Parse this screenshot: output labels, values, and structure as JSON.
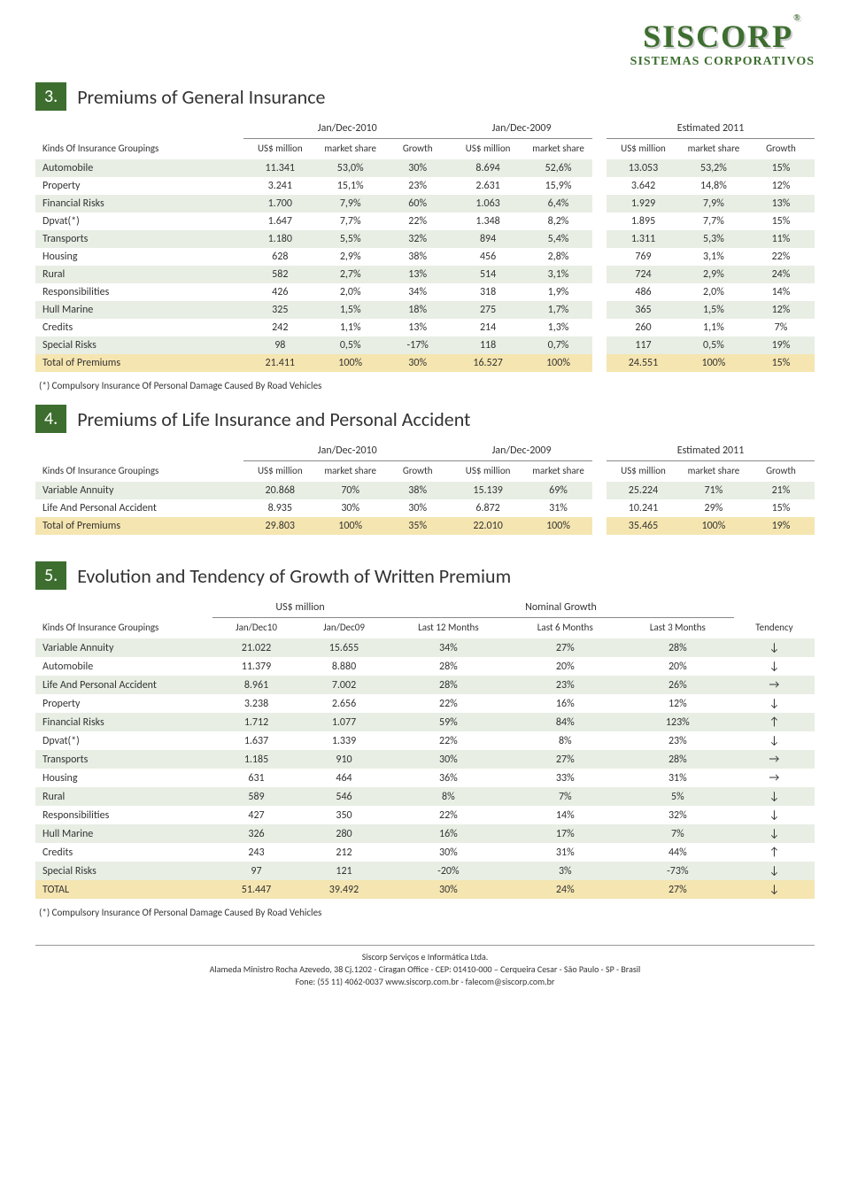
{
  "logo": {
    "main": "SISCORP",
    "reg": "®",
    "sub": "SISTEMAS CORPORATIVOS"
  },
  "colors": {
    "accent": "#3d6e2f",
    "altRow": "#e8eee4",
    "totalRow": "#f5e5b0"
  },
  "section3": {
    "num": "3.",
    "title": "Premiums of General Insurance",
    "periods": {
      "p1": "Jan/Dec-2010",
      "p2": "Jan/Dec-2009",
      "est": "Estimated 2011"
    },
    "colhead": {
      "kinds": "Kinds Of Insurance Groupings",
      "usd": "US$ million",
      "share": "market share",
      "growth": "Growth"
    },
    "rows": [
      {
        "label": "Automobile",
        "a": "11.341",
        "b": "53,0%",
        "c": "30%",
        "d": "8.694",
        "e": "52,6%",
        "f": "13.053",
        "g": "53,2%",
        "h": "15%"
      },
      {
        "label": "Property",
        "a": "3.241",
        "b": "15,1%",
        "c": "23%",
        "d": "2.631",
        "e": "15,9%",
        "f": "3.642",
        "g": "14,8%",
        "h": "12%"
      },
      {
        "label": "Financial Risks",
        "a": "1.700",
        "b": "7,9%",
        "c": "60%",
        "d": "1.063",
        "e": "6,4%",
        "f": "1.929",
        "g": "7,9%",
        "h": "13%"
      },
      {
        "label": "Dpvat(*)",
        "a": "1.647",
        "b": "7,7%",
        "c": "22%",
        "d": "1.348",
        "e": "8,2%",
        "f": "1.895",
        "g": "7,7%",
        "h": "15%"
      },
      {
        "label": "Transports",
        "a": "1.180",
        "b": "5,5%",
        "c": "32%",
        "d": "894",
        "e": "5,4%",
        "f": "1.311",
        "g": "5,3%",
        "h": "11%"
      },
      {
        "label": "Housing",
        "a": "628",
        "b": "2,9%",
        "c": "38%",
        "d": "456",
        "e": "2,8%",
        "f": "769",
        "g": "3,1%",
        "h": "22%"
      },
      {
        "label": "Rural",
        "a": "582",
        "b": "2,7%",
        "c": "13%",
        "d": "514",
        "e": "3,1%",
        "f": "724",
        "g": "2,9%",
        "h": "24%"
      },
      {
        "label": "Responsibilities",
        "a": "426",
        "b": "2,0%",
        "c": "34%",
        "d": "318",
        "e": "1,9%",
        "f": "486",
        "g": "2,0%",
        "h": "14%"
      },
      {
        "label": "Hull Marine",
        "a": "325",
        "b": "1,5%",
        "c": "18%",
        "d": "275",
        "e": "1,7%",
        "f": "365",
        "g": "1,5%",
        "h": "12%"
      },
      {
        "label": "Credits",
        "a": "242",
        "b": "1,1%",
        "c": "13%",
        "d": "214",
        "e": "1,3%",
        "f": "260",
        "g": "1,1%",
        "h": "7%"
      },
      {
        "label": "Special Risks",
        "a": "98",
        "b": "0,5%",
        "c": "-17%",
        "d": "118",
        "e": "0,7%",
        "f": "117",
        "g": "0,5%",
        "h": "19%"
      }
    ],
    "total": {
      "label": "Total of Premiums",
      "a": "21.411",
      "b": "100%",
      "c": "30%",
      "d": "16.527",
      "e": "100%",
      "f": "24.551",
      "g": "100%",
      "h": "15%"
    },
    "footnote": "(*) Compulsory Insurance Of Personal Damage Caused By Road Vehicles"
  },
  "section4": {
    "num": "4.",
    "title": "Premiums of Life Insurance and Personal Accident",
    "periods": {
      "p1": "Jan/Dec-2010",
      "p2": "Jan/Dec-2009",
      "est": "Estimated 2011"
    },
    "colhead": {
      "kinds": "Kinds Of Insurance Groupings",
      "usd": "US$ million",
      "share": "market share",
      "growth": "Growth"
    },
    "rows": [
      {
        "label": "Variable Annuity",
        "a": "20.868",
        "b": "70%",
        "c": "38%",
        "d": "15.139",
        "e": "69%",
        "f": "25.224",
        "g": "71%",
        "h": "21%"
      },
      {
        "label": "Life And Personal Accident",
        "a": "8.935",
        "b": "30%",
        "c": "30%",
        "d": "6.872",
        "e": "31%",
        "f": "10.241",
        "g": "29%",
        "h": "15%"
      }
    ],
    "total": {
      "label": "Total of Premiums",
      "a": "29.803",
      "b": "100%",
      "c": "35%",
      "d": "22.010",
      "e": "100%",
      "f": "35.465",
      "g": "100%",
      "h": "19%"
    }
  },
  "section5": {
    "num": "5.",
    "title": "Evolution and Tendency of Growth of Written Premium",
    "periods": {
      "g1": "US$ million",
      "g2": "Nominal Growth"
    },
    "colhead": {
      "kinds": "Kinds Of Insurance Groupings",
      "c1": "Jan/Dec10",
      "c2": "Jan/Dec09",
      "c3": "Last 12 Months",
      "c4": "Last 6 Months",
      "c5": "Last 3 Months",
      "c6": "Tendency"
    },
    "rows": [
      {
        "label": "Variable Annuity",
        "a": "21.022",
        "b": "15.655",
        "c": "34%",
        "d": "27%",
        "e": "28%",
        "f": "↓"
      },
      {
        "label": "Automobile",
        "a": "11.379",
        "b": "8.880",
        "c": "28%",
        "d": "20%",
        "e": "20%",
        "f": "↓"
      },
      {
        "label": "Life And Personal Accident",
        "a": "8.961",
        "b": "7.002",
        "c": "28%",
        "d": "23%",
        "e": "26%",
        "f": "→"
      },
      {
        "label": "Property",
        "a": "3.238",
        "b": "2.656",
        "c": "22%",
        "d": "16%",
        "e": "12%",
        "f": "↓"
      },
      {
        "label": "Financial Risks",
        "a": "1.712",
        "b": "1.077",
        "c": "59%",
        "d": "84%",
        "e": "123%",
        "f": "↑"
      },
      {
        "label": "Dpvat(*)",
        "a": "1.637",
        "b": "1.339",
        "c": "22%",
        "d": "8%",
        "e": "23%",
        "f": "↓"
      },
      {
        "label": "Transports",
        "a": "1.185",
        "b": "910",
        "c": "30%",
        "d": "27%",
        "e": "28%",
        "f": "→"
      },
      {
        "label": "Housing",
        "a": "631",
        "b": "464",
        "c": "36%",
        "d": "33%",
        "e": "31%",
        "f": "→"
      },
      {
        "label": "Rural",
        "a": "589",
        "b": "546",
        "c": "8%",
        "d": "7%",
        "e": "5%",
        "f": "↓"
      },
      {
        "label": "Responsibilities",
        "a": "427",
        "b": "350",
        "c": "22%",
        "d": "14%",
        "e": "32%",
        "f": "↓"
      },
      {
        "label": "Hull Marine",
        "a": "326",
        "b": "280",
        "c": "16%",
        "d": "17%",
        "e": "7%",
        "f": "↓"
      },
      {
        "label": "Credits",
        "a": "243",
        "b": "212",
        "c": "30%",
        "d": "31%",
        "e": "44%",
        "f": "↑"
      },
      {
        "label": "Special Risks",
        "a": "97",
        "b": "121",
        "c": "-20%",
        "d": "3%",
        "e": "-73%",
        "f": "↓"
      }
    ],
    "total": {
      "label": "TOTAL",
      "a": "51.447",
      "b": "39.492",
      "c": "30%",
      "d": "24%",
      "e": "27%",
      "f": "↓"
    },
    "footnote": "(*) Compulsory Insurance Of Personal Damage Caused By Road Vehicles"
  },
  "footer": {
    "l1": "Siscorp Serviços e Informática Ltda.",
    "l2": "Alameda Ministro Rocha Azevedo, 38 Cj.1202 - Ciragan Office - CEP: 01410-000 – Cerqueira Cesar - São Paulo - SP - Brasil",
    "l3": "Fone: (55 11) 4062-0037                    www.siscorp.com.br - falecom@siscorp.com.br"
  }
}
